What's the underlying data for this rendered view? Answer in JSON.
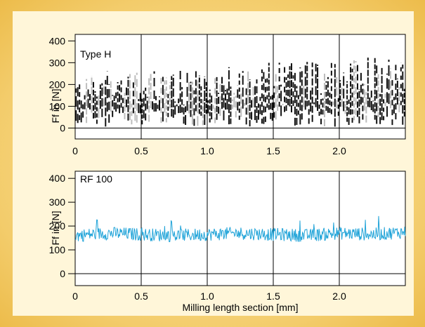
{
  "colors": {
    "background_gold": "#F2C968",
    "panel_cream": "#FFF6D9",
    "plot_white": "#FFFFFF",
    "series_typeh": "#111111",
    "series_typeh_light": "#BDBDBD",
    "series_rf100": "#1FA3D8"
  },
  "chart_data": [
    {
      "type": "line",
      "title": "Type H",
      "ylabel": "Ff in [N]",
      "xlabel": "",
      "xlim": [
        0,
        2.5
      ],
      "ylim": [
        -50,
        430
      ],
      "xticks": [
        0,
        0.5,
        1.0,
        1.5,
        2.0
      ],
      "xtick_labels": [
        "0",
        "0.5",
        "1.0",
        "1.5",
        "2.0"
      ],
      "yticks": [
        0,
        100,
        200,
        300,
        400
      ],
      "ytick_labels": [
        "0",
        "100",
        "200",
        "300",
        "400"
      ],
      "vertical_gridlines": [
        0.5,
        1.0,
        1.5,
        2.0
      ],
      "grid": "vertical only",
      "series": [
        {
          "style": "dense dashed vertical spikes",
          "color": "#111111",
          "x": [
            0,
            0.25,
            0.5,
            0.75,
            1.0,
            1.25,
            1.5,
            1.75,
            2.0,
            2.25,
            2.5
          ],
          "y_min": [
            10,
            5,
            5,
            5,
            5,
            5,
            5,
            5,
            5,
            5,
            5
          ],
          "y_max": [
            230,
            300,
            250,
            280,
            260,
            300,
            300,
            310,
            320,
            340,
            300
          ]
        }
      ]
    },
    {
      "type": "line",
      "title": "RF 100",
      "ylabel": "Ff in [N]",
      "xlabel": "Milling length section [mm]",
      "xlim": [
        0,
        2.5
      ],
      "ylim": [
        -50,
        430
      ],
      "xticks": [
        0,
        0.5,
        1.0,
        1.5,
        2.0
      ],
      "xtick_labels": [
        "0",
        "0.5",
        "1.0",
        "1.5",
        "2.0"
      ],
      "yticks": [
        0,
        100,
        200,
        300,
        400
      ],
      "ytick_labels": [
        "0",
        "100",
        "200",
        "300",
        "400"
      ],
      "vertical_gridlines": [
        0.5,
        1.0,
        1.5,
        2.0
      ],
      "grid": "vertical only",
      "series": [
        {
          "style": "noisy line",
          "color": "#1FA3D8",
          "x": [
            0,
            0.25,
            0.5,
            0.75,
            1.0,
            1.25,
            1.5,
            1.75,
            2.0,
            2.25,
            2.5
          ],
          "y": [
            160,
            170,
            165,
            160,
            165,
            170,
            165,
            160,
            170,
            165,
            175
          ],
          "y_range": [
            100,
            270
          ]
        }
      ]
    }
  ]
}
